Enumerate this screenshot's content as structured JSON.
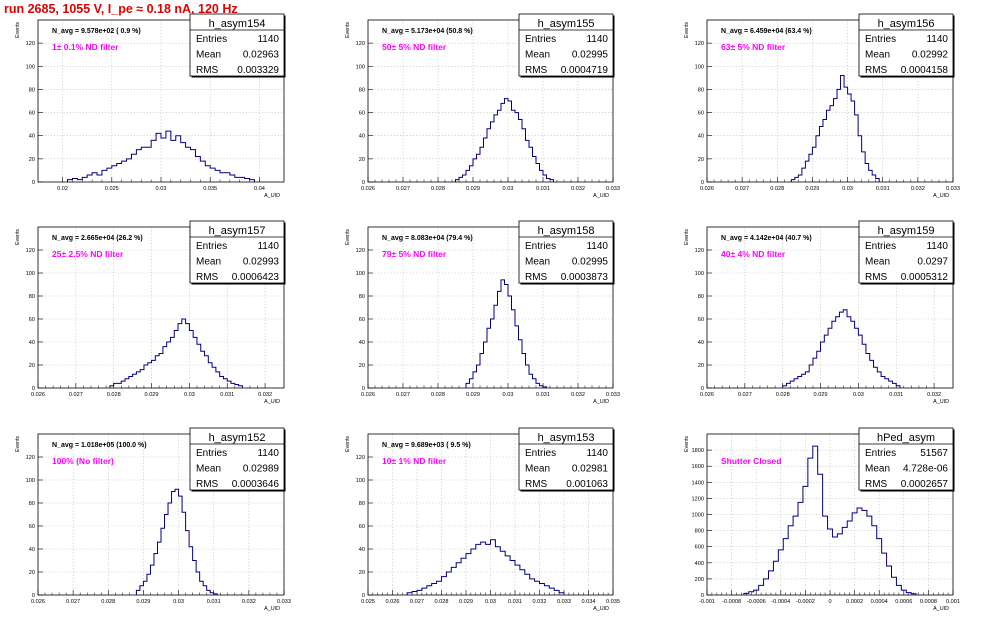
{
  "page": {
    "title": "run 2685,  1055 V, I_pe ≈ 0.18 nA, 120 Hz"
  },
  "chart_data": [
    {
      "type": "histogram",
      "name": "h_asym154",
      "navg": "N_avg = 9.578e+02 ( 0.9 %)",
      "filter": "1± 0.1% ND filter",
      "stats": [
        [
          "Entries",
          "1140"
        ],
        [
          "Mean",
          "0.02963"
        ],
        [
          "RMS",
          "0.003329"
        ]
      ],
      "xlim": [
        0.0175,
        0.0425
      ],
      "ylim": [
        0,
        140
      ],
      "xticks": [
        0.02,
        0.025,
        0.03,
        0.035,
        0.04
      ],
      "xticklabels": [
        "0.02",
        "0.025",
        "0.03",
        "0.035",
        "0.04"
      ],
      "yticks": [
        0,
        20,
        40,
        60,
        80,
        100,
        120
      ],
      "xlabel": "A_UID",
      "ylabel": "Events",
      "edges": [
        0.0205,
        0.021,
        0.0215,
        0.022,
        0.0225,
        0.023,
        0.0235,
        0.024,
        0.0245,
        0.025,
        0.0255,
        0.026,
        0.0265,
        0.027,
        0.0275,
        0.028,
        0.0285,
        0.029,
        0.0295,
        0.03,
        0.0305,
        0.031,
        0.0315,
        0.032,
        0.0325,
        0.033,
        0.0335,
        0.034,
        0.0345,
        0.035,
        0.0355,
        0.036,
        0.0365,
        0.037,
        0.0375,
        0.038,
        0.0385,
        0.039,
        0.0395
      ],
      "counts": [
        2,
        3,
        2,
        4,
        6,
        8,
        6,
        10,
        12,
        14,
        16,
        18,
        20,
        24,
        28,
        30,
        30,
        36,
        42,
        38,
        44,
        36,
        40,
        34,
        30,
        28,
        22,
        18,
        14,
        12,
        10,
        8,
        8,
        6,
        4,
        4,
        3,
        2
      ]
    },
    {
      "type": "histogram",
      "name": "h_asym155",
      "navg": "N_avg = 5.173e+04 (50.8 %)",
      "filter": "50± 5% ND filter",
      "stats": [
        [
          "Entries",
          "1140"
        ],
        [
          "Mean",
          "0.02995"
        ],
        [
          "RMS",
          "0.0004719"
        ]
      ],
      "xlim": [
        0.026,
        0.033
      ],
      "ylim": [
        0,
        140
      ],
      "xticks": [
        0.026,
        0.027,
        0.028,
        0.029,
        0.03,
        0.031,
        0.032,
        0.033
      ],
      "xticklabels": [
        "0.026",
        "0.027",
        "0.028",
        "0.029",
        "0.03",
        "0.031",
        "0.032",
        "0.033"
      ],
      "yticks": [
        0,
        20,
        40,
        60,
        80,
        100,
        120
      ],
      "xlabel": "A_UID",
      "ylabel": "Events",
      "edges": [
        0.0285,
        0.0286,
        0.0287,
        0.0288,
        0.0289,
        0.029,
        0.0291,
        0.0292,
        0.0293,
        0.0294,
        0.0295,
        0.0296,
        0.0297,
        0.0298,
        0.0299,
        0.03,
        0.0301,
        0.0302,
        0.0303,
        0.0304,
        0.0305,
        0.0306,
        0.0307,
        0.0308,
        0.0309,
        0.031,
        0.0311,
        0.0312,
        0.0313
      ],
      "counts": [
        2,
        4,
        6,
        10,
        14,
        20,
        24,
        30,
        38,
        46,
        52,
        58,
        62,
        68,
        72,
        70,
        62,
        60,
        54,
        46,
        36,
        30,
        22,
        16,
        10,
        6,
        3,
        2
      ]
    },
    {
      "type": "histogram",
      "name": "h_asym156",
      "navg": "N_avg = 6.459e+04 (63.4 %)",
      "filter": "63± 5% ND filter",
      "stats": [
        [
          "Entries",
          "1140"
        ],
        [
          "Mean",
          "0.02992"
        ],
        [
          "RMS",
          "0.0004158"
        ]
      ],
      "xlim": [
        0.026,
        0.033
      ],
      "ylim": [
        0,
        140
      ],
      "xticks": [
        0.026,
        0.027,
        0.028,
        0.029,
        0.03,
        0.031,
        0.032,
        0.033
      ],
      "xticklabels": [
        "0.026",
        "0.027",
        "0.028",
        "0.029",
        "0.03",
        "0.031",
        "0.032",
        "0.033"
      ],
      "yticks": [
        0,
        20,
        40,
        60,
        80,
        100,
        120
      ],
      "xlabel": "A_UID",
      "ylabel": "Events",
      "edges": [
        0.0284,
        0.0285,
        0.0286,
        0.0287,
        0.0288,
        0.0289,
        0.029,
        0.0291,
        0.0292,
        0.0293,
        0.0294,
        0.0295,
        0.0296,
        0.0297,
        0.0298,
        0.0299,
        0.03,
        0.0301,
        0.0302,
        0.0303,
        0.0304,
        0.0305,
        0.0306,
        0.0307,
        0.0308,
        0.0309
      ],
      "counts": [
        2,
        4,
        6,
        12,
        18,
        24,
        30,
        40,
        48,
        54,
        62,
        66,
        72,
        80,
        92,
        82,
        76,
        70,
        58,
        40,
        26,
        16,
        10,
        6,
        3
      ]
    },
    {
      "type": "histogram",
      "name": "h_asym157",
      "navg": "N_avg = 2.665e+04 (26.2 %)",
      "filter": "25± 2.5% ND filter",
      "stats": [
        [
          "Entries",
          "1140"
        ],
        [
          "Mean",
          "0.02993"
        ],
        [
          "RMS",
          "0.0006423"
        ]
      ],
      "xlim": [
        0.026,
        0.0325
      ],
      "ylim": [
        0,
        140
      ],
      "xticks": [
        0.026,
        0.027,
        0.028,
        0.029,
        0.03,
        0.031,
        0.032
      ],
      "xticklabels": [
        "0.026",
        "0.027",
        "0.028",
        "0.029",
        "0.03",
        "0.031",
        "0.032"
      ],
      "yticks": [
        0,
        20,
        40,
        60,
        80,
        100,
        120
      ],
      "xlabel": "A_UID",
      "ylabel": "Events",
      "edges": [
        0.0279,
        0.028,
        0.0281,
        0.0282,
        0.0283,
        0.0284,
        0.0285,
        0.0286,
        0.0287,
        0.0288,
        0.0289,
        0.029,
        0.0291,
        0.0292,
        0.0293,
        0.0294,
        0.0295,
        0.0296,
        0.0297,
        0.0298,
        0.0299,
        0.03,
        0.0301,
        0.0302,
        0.0303,
        0.0304,
        0.0305,
        0.0306,
        0.0307,
        0.0308,
        0.0309,
        0.031,
        0.0311,
        0.0312,
        0.0313,
        0.0314
      ],
      "counts": [
        2,
        4,
        4,
        6,
        8,
        10,
        12,
        14,
        16,
        20,
        22,
        24,
        28,
        30,
        36,
        40,
        44,
        50,
        56,
        60,
        56,
        50,
        44,
        38,
        32,
        28,
        22,
        18,
        14,
        10,
        8,
        6,
        4,
        3,
        2
      ]
    },
    {
      "type": "histogram",
      "name": "h_asym158",
      "navg": "N_avg = 8.083e+04 (79.4 %)",
      "filter": "79± 5% ND filter",
      "stats": [
        [
          "Entries",
          "1140"
        ],
        [
          "Mean",
          "0.02995"
        ],
        [
          "RMS",
          "0.0003873"
        ]
      ],
      "xlim": [
        0.026,
        0.033
      ],
      "ylim": [
        0,
        140
      ],
      "xticks": [
        0.026,
        0.027,
        0.028,
        0.029,
        0.03,
        0.031,
        0.032,
        0.033
      ],
      "xticklabels": [
        "0.026",
        "0.027",
        "0.028",
        "0.029",
        "0.03",
        "0.031",
        "0.032",
        "0.033"
      ],
      "yticks": [
        0,
        20,
        40,
        60,
        80,
        100,
        120
      ],
      "xlabel": "A_UID",
      "ylabel": "Events",
      "edges": [
        0.0288,
        0.0289,
        0.029,
        0.0291,
        0.0292,
        0.0293,
        0.0294,
        0.0295,
        0.0296,
        0.0297,
        0.0298,
        0.0299,
        0.03,
        0.0301,
        0.0302,
        0.0303,
        0.0304,
        0.0305,
        0.0306,
        0.0307,
        0.0308,
        0.0309,
        0.031,
        0.0311
      ],
      "counts": [
        4,
        8,
        14,
        20,
        30,
        40,
        52,
        60,
        72,
        84,
        94,
        90,
        80,
        68,
        54,
        42,
        30,
        20,
        12,
        8,
        4,
        2,
        1
      ]
    },
    {
      "type": "histogram",
      "name": "h_asym159",
      "navg": "N_avg = 4.142e+04 (40.7 %)",
      "filter": "40± 4% ND filter",
      "stats": [
        [
          "Entries",
          "1140"
        ],
        [
          "Mean",
          "0.0297"
        ],
        [
          "RMS",
          "0.0005312"
        ]
      ],
      "xlim": [
        0.026,
        0.0325
      ],
      "ylim": [
        0,
        140
      ],
      "xticks": [
        0.026,
        0.027,
        0.028,
        0.029,
        0.03,
        0.031,
        0.032
      ],
      "xticklabels": [
        "0.026",
        "0.027",
        "0.028",
        "0.029",
        "0.03",
        "0.031",
        "0.032"
      ],
      "yticks": [
        0,
        20,
        40,
        60,
        80,
        100,
        120
      ],
      "xlabel": "A_UID",
      "ylabel": "Events",
      "edges": [
        0.028,
        0.0281,
        0.0282,
        0.0283,
        0.0284,
        0.0285,
        0.0286,
        0.0287,
        0.0288,
        0.0289,
        0.029,
        0.0291,
        0.0292,
        0.0293,
        0.0294,
        0.0295,
        0.0296,
        0.0297,
        0.0298,
        0.0299,
        0.03,
        0.0301,
        0.0302,
        0.0303,
        0.0304,
        0.0305,
        0.0306,
        0.0307,
        0.0308,
        0.0309,
        0.031,
        0.0311
      ],
      "counts": [
        2,
        4,
        6,
        8,
        10,
        12,
        14,
        20,
        26,
        32,
        40,
        46,
        52,
        58,
        62,
        66,
        68,
        62,
        58,
        52,
        46,
        38,
        30,
        24,
        18,
        14,
        10,
        8,
        6,
        4,
        2
      ]
    },
    {
      "type": "histogram",
      "name": "h_asym152",
      "navg": "N_avg = 1.018e+05 (100.0 %)",
      "filter": "100% (No filter)",
      "stats": [
        [
          "Entries",
          "1140"
        ],
        [
          "Mean",
          "0.02989"
        ],
        [
          "RMS",
          "0.0003646"
        ]
      ],
      "xlim": [
        0.026,
        0.033
      ],
      "ylim": [
        0,
        140
      ],
      "xticks": [
        0.026,
        0.027,
        0.028,
        0.029,
        0.03,
        0.031,
        0.032,
        0.033
      ],
      "xticklabels": [
        "0.026",
        "0.027",
        "0.028",
        "0.029",
        "0.03",
        "0.031",
        "0.032",
        "0.033"
      ],
      "yticks": [
        0,
        20,
        40,
        60,
        80,
        100,
        120
      ],
      "xlabel": "A_UID",
      "ylabel": "Events",
      "edges": [
        0.0288,
        0.0289,
        0.029,
        0.0291,
        0.0292,
        0.0293,
        0.0294,
        0.0295,
        0.0296,
        0.0297,
        0.0298,
        0.0299,
        0.03,
        0.0301,
        0.0302,
        0.0303,
        0.0304,
        0.0305,
        0.0306,
        0.0307,
        0.0308,
        0.0309,
        0.031,
        0.0311
      ],
      "counts": [
        4,
        8,
        12,
        18,
        26,
        36,
        46,
        58,
        70,
        80,
        90,
        92,
        86,
        72,
        56,
        42,
        30,
        20,
        12,
        8,
        4,
        2,
        1
      ]
    },
    {
      "type": "histogram",
      "name": "h_asym153",
      "navg": "N_avg = 9.689e+03 ( 9.5 %)",
      "filter": "10± 1% ND filter",
      "stats": [
        [
          "Entries",
          "1140"
        ],
        [
          "Mean",
          "0.02981"
        ],
        [
          "RMS",
          "0.001063"
        ]
      ],
      "xlim": [
        0.025,
        0.035
      ],
      "ylim": [
        0,
        140
      ],
      "xticks": [
        0.025,
        0.026,
        0.027,
        0.028,
        0.029,
        0.03,
        0.031,
        0.032,
        0.033,
        0.034,
        0.035
      ],
      "xticklabels": [
        "0.025",
        "0.026",
        "0.027",
        "0.028",
        "0.029",
        "0.03",
        "0.031",
        "0.032",
        "0.033",
        "0.034",
        "0.035"
      ],
      "yticks": [
        0,
        20,
        40,
        60,
        80,
        100,
        120
      ],
      "xlabel": "A_UID",
      "ylabel": "Events",
      "edges": [
        0.0266,
        0.0268,
        0.027,
        0.0272,
        0.0274,
        0.0276,
        0.0278,
        0.028,
        0.0282,
        0.0284,
        0.0286,
        0.0288,
        0.029,
        0.0292,
        0.0294,
        0.0296,
        0.0298,
        0.03,
        0.0302,
        0.0304,
        0.0306,
        0.0308,
        0.031,
        0.0312,
        0.0314,
        0.0316,
        0.0318,
        0.032,
        0.0322,
        0.0324,
        0.0326,
        0.0328,
        0.033
      ],
      "counts": [
        2,
        3,
        4,
        6,
        8,
        10,
        12,
        16,
        20,
        24,
        28,
        32,
        36,
        40,
        44,
        46,
        44,
        48,
        42,
        38,
        34,
        30,
        26,
        22,
        18,
        14,
        12,
        10,
        8,
        6,
        4,
        2
      ]
    },
    {
      "type": "histogram",
      "name": "hPed_asym",
      "navg": "",
      "filter": "Shutter Closed",
      "stats": [
        [
          "Entries",
          "51567"
        ],
        [
          "Mean",
          "4.728e-06"
        ],
        [
          "RMS",
          "0.0002657"
        ]
      ],
      "xlim": [
        -0.001,
        0.001
      ],
      "ylim": [
        0,
        2000
      ],
      "xticks": [
        -0.001,
        -0.0008,
        -0.0006,
        -0.0004,
        -0.0002,
        0,
        0.0002,
        0.0004,
        0.0006,
        0.0008,
        0.001
      ],
      "xticklabels": [
        "-0.001",
        "-0.0008",
        "-0.0006",
        "-0.0004",
        "-0.0002",
        "0",
        "0.0002",
        "0.0004",
        "0.0006",
        "0.0008",
        "0.001"
      ],
      "yticks": [
        0,
        200,
        400,
        600,
        800,
        1000,
        1200,
        1400,
        1600,
        1800
      ],
      "xlabel": "A_UID",
      "ylabel": "Events",
      "edges": [
        -0.0007,
        -0.00066,
        -0.00062,
        -0.00058,
        -0.00054,
        -0.0005,
        -0.00046,
        -0.00042,
        -0.00038,
        -0.00034,
        -0.0003,
        -0.00026,
        -0.00022,
        -0.00018,
        -0.00014,
        -0.0001,
        -6e-05,
        -2e-05,
        2e-05,
        6e-05,
        0.0001,
        0.00014,
        0.00018,
        0.00022,
        0.00026,
        0.0003,
        0.00034,
        0.00038,
        0.00042,
        0.00046,
        0.0005,
        0.00054,
        0.00058,
        0.00062,
        0.00066,
        0.0007
      ],
      "counts": [
        20,
        40,
        60,
        120,
        200,
        300,
        420,
        560,
        700,
        860,
        980,
        1150,
        1350,
        1700,
        1850,
        1500,
        980,
        820,
        720,
        760,
        840,
        920,
        1020,
        1080,
        1050,
        980,
        860,
        700,
        520,
        360,
        220,
        120,
        60,
        30,
        15
      ]
    }
  ]
}
